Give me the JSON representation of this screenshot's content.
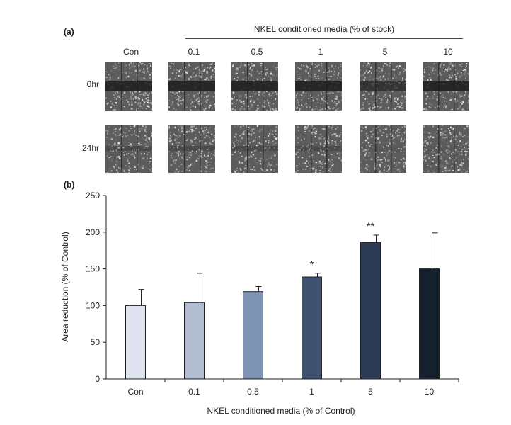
{
  "figure": {
    "panel_a_label": "(a)",
    "panel_b_label": "(b)",
    "header": "NKEL conditioned media (% of stock)",
    "columns": [
      "Con",
      "0.1",
      "0.5",
      "1",
      "5",
      "10"
    ],
    "rows": [
      "0hr",
      "24hr"
    ]
  },
  "chart_data": {
    "type": "bar",
    "categories": [
      "Con",
      "0.1",
      "0.5",
      "1",
      "5",
      "10"
    ],
    "values": [
      100,
      104,
      119,
      139,
      186,
      150
    ],
    "errors": [
      22,
      40,
      7,
      5,
      10,
      49
    ],
    "significance": [
      "",
      "",
      "",
      "*",
      "**",
      ""
    ],
    "colors": [
      "#dfe3ef",
      "#b3bdd2",
      "#7f93b2",
      "#3f5371",
      "#2c3a55",
      "#15202f"
    ],
    "title": "",
    "xlabel": "NKEL conditioned media (% of Control)",
    "ylabel": "Area reduction (% of Control)",
    "ylim": [
      0,
      250
    ],
    "yticks": [
      0,
      50,
      100,
      150,
      200,
      250
    ],
    "grid": false,
    "legend": "none"
  }
}
